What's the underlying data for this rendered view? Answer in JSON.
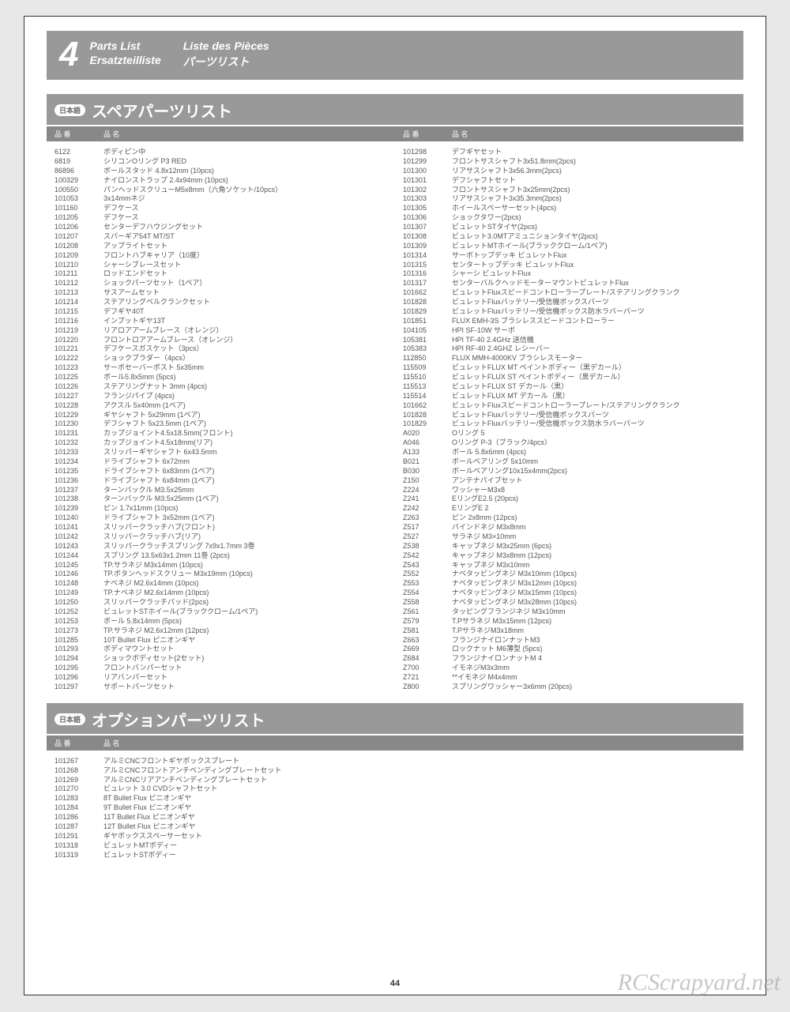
{
  "header": {
    "num": "4",
    "titles": [
      "Parts List",
      "Liste des Pièces",
      "Ersatzteilliste",
      "パーツリスト"
    ]
  },
  "spare": {
    "lang": "日本語",
    "title": "スペアパーツリスト",
    "heads": {
      "num": "品 番",
      "name": "品 名"
    },
    "left": [
      [
        "6122",
        "ボディピン中"
      ],
      [
        "6819",
        "シリコンOリング P3 RED"
      ],
      [
        "86896",
        "ボールスタッド 4.8x12mm (10pcs)"
      ],
      [
        "100329",
        "ナイロンストラップ 2.4x94mm (10pcs)"
      ],
      [
        "100550",
        "パンヘッドスクリューM5x8mm（六角ソケット/10pcs）"
      ],
      [
        "101053",
        "3x14mmネジ"
      ],
      [
        "101160",
        "デフケース"
      ],
      [
        "101205",
        "デフケース"
      ],
      [
        "101206",
        "センターデフハウジングセット"
      ],
      [
        "101207",
        "スパーギア54T MT/ST"
      ],
      [
        "101208",
        "アップライトセット"
      ],
      [
        "101209",
        "フロントハブキャリア（10度）"
      ],
      [
        "101210",
        "シャーシブレースセット"
      ],
      [
        "101211",
        "ロッドエンドセット"
      ],
      [
        "101212",
        "ショックパーツセット（1ペア）"
      ],
      [
        "101213",
        "サスアームセット"
      ],
      [
        "101214",
        "ステアリングベルクランクセット"
      ],
      [
        "101215",
        "デフギヤ40T"
      ],
      [
        "101216",
        "インプットギヤ13T"
      ],
      [
        "101219",
        "リアロアアームブレース（オレンジ）"
      ],
      [
        "101220",
        "フロントロアアームブレース（オレンジ）"
      ],
      [
        "101221",
        "デフケースガスケット（3pcs）"
      ],
      [
        "101222",
        "ショックブラダー（4pcs）"
      ],
      [
        "101223",
        "サーボセーバーポスト 5x35mm"
      ],
      [
        "101225",
        "ボール5.8x5mm (5pcs)"
      ],
      [
        "101226",
        "ステアリングナット 3mm (4pcs)"
      ],
      [
        "101227",
        "フランジパイプ (4pcs)"
      ],
      [
        "101228",
        "アクスル 5x40mm (1ペア)"
      ],
      [
        "101229",
        "ギヤシャフト 5x29mm (1ペア)"
      ],
      [
        "101230",
        "デフシャフト 5x23.5mm (1ペア)"
      ],
      [
        "101231",
        "カップジョイント4.5x18.5mm(フロント)"
      ],
      [
        "101232",
        "カップジョイント4.5x18mm(リア)"
      ],
      [
        "101233",
        "スリッパーギヤシャフト 6x43.5mm"
      ],
      [
        "101234",
        "ドライブシャフト 6x72mm"
      ],
      [
        "101235",
        "ドライブシャフト 6x83mm (1ペア)"
      ],
      [
        "101236",
        "ドライブシャフト 6x84mm (1ペア)"
      ],
      [
        "101237",
        "ターンバックル M3.5x25mm"
      ],
      [
        "101238",
        "ターンバックル M3.5x25mm (1ペア)"
      ],
      [
        "101239",
        "ピン 1.7x11mm (10pcs)"
      ],
      [
        "101240",
        "ドライブシャフト 3x52mm (1ペア)"
      ],
      [
        "101241",
        "スリッパークラッチハブ(フロント)"
      ],
      [
        "101242",
        "スリッパークラッチハブ(リア)"
      ],
      [
        "101243",
        "スリッパークラッチスプリング 7x9x1.7mm 3巻"
      ],
      [
        "101244",
        "スプリング 13.5x63x1.2mm 11巻 (2pcs)"
      ],
      [
        "101245",
        "TP.サラネジ M3x14mm (10pcs)"
      ],
      [
        "101246",
        "TP.ボタンヘッドスクリュー M3x19mm (10pcs)"
      ],
      [
        "101248",
        "ナベネジ M2.6x14mm (10pcs)"
      ],
      [
        "101249",
        "TP.ナベネジ M2.6x14mm (10pcs)"
      ],
      [
        "101250",
        "スリッパークラッチパッド(2pcs)"
      ],
      [
        "101252",
        "ビュレットSTホイール(ブラッククローム/1ペア)"
      ],
      [
        "101253",
        "ボール 5.8x14mm (5pcs)"
      ],
      [
        "101273",
        "TP.サラネジ M2.6x12mm (12pcs)"
      ],
      [
        "101285",
        "10T Bullet Flux ピニオンギヤ"
      ],
      [
        "101293",
        "ボディマウントセット"
      ],
      [
        "101294",
        "ショックボディセット(2セット)"
      ],
      [
        "101295",
        "フロントバンパーセット"
      ],
      [
        "101296",
        "リアバンパーセット"
      ],
      [
        "101297",
        "サポートパーツセット"
      ]
    ],
    "right": [
      [
        "101298",
        "デフギヤセット"
      ],
      [
        "101299",
        "フロントサスシャフト3x51.8mm(2pcs)"
      ],
      [
        "101300",
        "リアサスシャフト3x56.3mm(2pcs)"
      ],
      [
        "101301",
        "デフシャフトセット"
      ],
      [
        "101302",
        "フロントサスシャフト3x25mm(2pcs)"
      ],
      [
        "101303",
        "リアサスシャフト3x35.3mm(2pcs)"
      ],
      [
        "101305",
        "ホイールスペーサーセット(4pcs)"
      ],
      [
        "101306",
        "ショックタワー(2pcs)"
      ],
      [
        "101307",
        "ビュレットSTタイヤ(2pcs)"
      ],
      [
        "101308",
        "ビュレット3.0MTアミュニションタイヤ(2pcs)"
      ],
      [
        "101309",
        "ビュレットMTホイール(ブラッククローム/1ペア)"
      ],
      [
        "101314",
        "サーボトップデッキ ビュレットFlux"
      ],
      [
        "101315",
        "センタートップデッキ ビュレットFlux"
      ],
      [
        "101316",
        "シャーシ ビュレットFlux"
      ],
      [
        "101317",
        "センターバルクヘッドモーターマウントビュレットFlux"
      ],
      [
        "101662",
        "ビュレットFluxスピードコントローラープレート/ステアリングクランク"
      ],
      [
        "101828",
        "ビュレットFluxバッテリー/受信機ボックスパーツ"
      ],
      [
        "101829",
        "ビュレットFluxバッテリー/受信機ボックス防水ラバーパーツ"
      ],
      [
        "101851",
        "FLUX EMH-3S ブラシレススピードコントローラー"
      ],
      [
        "104105",
        "HPI SF-10W サーボ"
      ],
      [
        "105381",
        "HPI TF-40 2.4GHz 送信機"
      ],
      [
        "105383",
        "HPI RF-40 2.4GHZ レシーバー"
      ],
      [
        "112850",
        "FLUX MMH-4000KV ブラシレスモーター"
      ],
      [
        "115509",
        "ビュレットFLUX MT ペイントボディー（黒デカール）"
      ],
      [
        "115510",
        "ビュレットFLUX ST ペイントボディー（黒デカール）"
      ],
      [
        "115513",
        "ビュレットFLUX ST デカール（黒）"
      ],
      [
        "115514",
        "ビュレットFLUX MT デカール（黒）"
      ],
      [
        "101662",
        "ビュレットFluxスピードコントローラープレート/ステアリングクランク"
      ],
      [
        "101828",
        "ビュレットFluxバッテリー/受信機ボックスパーツ"
      ],
      [
        "101829",
        "ビュレットFluxバッテリー/受信機ボックス防水ラバーパーツ"
      ],
      [
        "A020",
        "Oリング 5"
      ],
      [
        "A046",
        "Oリング P-3（ブラック/4pcs）"
      ],
      [
        "A133",
        "ボール 5.8x6mm (4pcs)"
      ],
      [
        "B021",
        "ボールベアリング 5x10mm"
      ],
      [
        "B030",
        "ボールベアリング10x15x4mm(2pcs)"
      ],
      [
        "Z150",
        "アンテナパイプセット"
      ],
      [
        "Z224",
        "ワッシャーM3x8"
      ],
      [
        "Z241",
        "EリングE2.5 (20pcs)"
      ],
      [
        "Z242",
        "EリングE 2"
      ],
      [
        "Z263",
        "ピン 2x8mm (12pcs)"
      ],
      [
        "Z517",
        "バインドネジ M3x8mm"
      ],
      [
        "Z527",
        "サラネジ M3×10mm"
      ],
      [
        "Z538",
        "キャップネジ M3x25mm (6pcs)"
      ],
      [
        "Z542",
        "キャップネジ M3x8mm (12pcs)"
      ],
      [
        "Z543",
        "キャップネジ M3x10mm"
      ],
      [
        "Z552",
        "ナベタッピングネジ M3x10mm (10pcs)"
      ],
      [
        "Z553",
        "ナベタッピングネジ M3x12mm (10pcs)"
      ],
      [
        "Z554",
        "ナベタッピングネジ M3x15mm (10pcs)"
      ],
      [
        "Z558",
        "ナベタッピングネジ M3x28mm (10pcs)"
      ],
      [
        "Z561",
        "タッピングフランジネジ M3x10mm"
      ],
      [
        "Z579",
        "T.Pサラネジ M3x15mm (12pcs)"
      ],
      [
        "Z581",
        "T.PサラネジM3x18mm"
      ],
      [
        "Z663",
        "フランジナイロンナットM3"
      ],
      [
        "Z669",
        "ロックナット M6薄型 (5pcs)"
      ],
      [
        "Z684",
        "フランジナイロンナットM 4"
      ],
      [
        "Z700",
        "イモネジM3x3mm"
      ],
      [
        "Z721",
        "**イモネジ M4x4mm"
      ],
      [
        "Z800",
        "スプリングワッシャー3x6mm (20pcs)"
      ]
    ]
  },
  "option": {
    "lang": "日本語",
    "title": "オプションパーツリスト",
    "heads": {
      "num": "品 番",
      "name": "品 名"
    },
    "rows": [
      [
        "101267",
        "アルミCNCフロントギヤボックスプレート"
      ],
      [
        "101268",
        "アルミCNCフロントアンチベンディングプレートセット"
      ],
      [
        "101269",
        "アルミCNCリアアンチベンディングプレートセット"
      ],
      [
        "101270",
        "ビュレット 3.0 CVDシャフトセット"
      ],
      [
        "101283",
        "8T Bullet Flux ピニオンギヤ"
      ],
      [
        "101284",
        "9T Bullet Flux ピニオンギヤ"
      ],
      [
        "101286",
        "11T Bullet Flux ピニオンギヤ"
      ],
      [
        "101287",
        "12T Bullet Flux ピニオンギヤ"
      ],
      [
        "101291",
        "ギヤボックススペーサーセット"
      ],
      [
        "101318",
        "ビュレットMTボディー"
      ],
      [
        "101319",
        "ビュレットSTボディー"
      ]
    ]
  },
  "pageNumber": "44",
  "watermark": "RCScrapyard.net"
}
